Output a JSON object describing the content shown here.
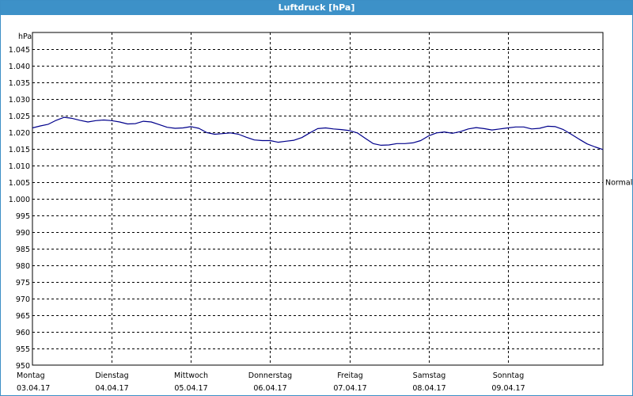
{
  "window": {
    "title": "Luftdruck [hPa]"
  },
  "chart_data": {
    "type": "line",
    "title": "Luftdruck [hPa]",
    "ylabel": "hPa",
    "xlabel": "",
    "ylim": [
      950,
      1050
    ],
    "yticks": [
      950,
      955,
      960,
      965,
      970,
      975,
      980,
      985,
      990,
      995,
      1000,
      1005,
      1010,
      1015,
      1020,
      1025,
      1030,
      1035,
      1040,
      1045
    ],
    "ytick_labels": [
      "950",
      "955",
      "960",
      "965",
      "970",
      "975",
      "980",
      "985",
      "990",
      "995",
      "1.000",
      "1.005",
      "1.010",
      "1.015",
      "1.020",
      "1.025",
      "1.030",
      "1.035",
      "1.040",
      "1.045"
    ],
    "xlim": [
      0,
      7.2
    ],
    "days": [
      {
        "x": 0,
        "weekday": "Montag",
        "date": "03.04.17"
      },
      {
        "x": 1,
        "weekday": "Dienstag",
        "date": "04.04.17"
      },
      {
        "x": 2,
        "weekday": "Mittwoch",
        "date": "05.04.17"
      },
      {
        "x": 3,
        "weekday": "Donnerstag",
        "date": "06.04.17"
      },
      {
        "x": 4,
        "weekday": "Freitag",
        "date": "07.04.17"
      },
      {
        "x": 5,
        "weekday": "Samstag",
        "date": "08.04.17"
      },
      {
        "x": 6,
        "weekday": "Sonntag",
        "date": "09.04.17"
      }
    ],
    "reference_line": {
      "label": "Normal",
      "value": 1005
    },
    "grid": true,
    "series_color": "#00008b",
    "series": [
      {
        "x": [
          0.0,
          0.1,
          0.2,
          0.3,
          0.4,
          0.5,
          0.6,
          0.7,
          0.8,
          0.9,
          1.0,
          1.1,
          1.2,
          1.3,
          1.4,
          1.5,
          1.6,
          1.7,
          1.8,
          1.9,
          2.0,
          2.1,
          2.2,
          2.3,
          2.4,
          2.5,
          2.6,
          2.7,
          2.8,
          2.9,
          3.0,
          3.1,
          3.2,
          3.3,
          3.4,
          3.5,
          3.6,
          3.7,
          3.8,
          3.9,
          4.0,
          4.1,
          4.2,
          4.3,
          4.4,
          4.5,
          4.6,
          4.7,
          4.8,
          4.9,
          5.0,
          5.1,
          5.2,
          5.3,
          5.4,
          5.5,
          5.6,
          5.7,
          5.8,
          5.9,
          6.0,
          6.1,
          6.2,
          6.3,
          6.4,
          6.5,
          6.6,
          6.7,
          6.8,
          6.9,
          7.0,
          7.1,
          7.2
        ],
        "y": [
          1021.3,
          1021.9,
          1022.4,
          1023.6,
          1024.5,
          1024.2,
          1023.6,
          1023.1,
          1023.5,
          1023.7,
          1023.5,
          1023.1,
          1022.5,
          1022.6,
          1023.3,
          1023.1,
          1022.3,
          1021.5,
          1021.2,
          1021.3,
          1021.7,
          1021.2,
          1019.9,
          1019.4,
          1019.6,
          1019.8,
          1019.4,
          1018.5,
          1017.7,
          1017.5,
          1017.5,
          1017.0,
          1017.3,
          1017.6,
          1018.4,
          1019.8,
          1021.1,
          1021.3,
          1021.0,
          1020.8,
          1020.5,
          1019.8,
          1018.2,
          1016.6,
          1016.1,
          1016.2,
          1016.6,
          1016.6,
          1016.8,
          1017.5,
          1018.9,
          1019.8,
          1020.1,
          1019.7,
          1020.2,
          1021.0,
          1021.4,
          1021.1,
          1020.7,
          1021.0,
          1021.3,
          1021.6,
          1021.6,
          1021.0,
          1021.2,
          1021.8,
          1021.7,
          1020.8,
          1019.4,
          1017.9,
          1016.5,
          1015.6,
          1014.8
        ]
      }
    ]
  }
}
